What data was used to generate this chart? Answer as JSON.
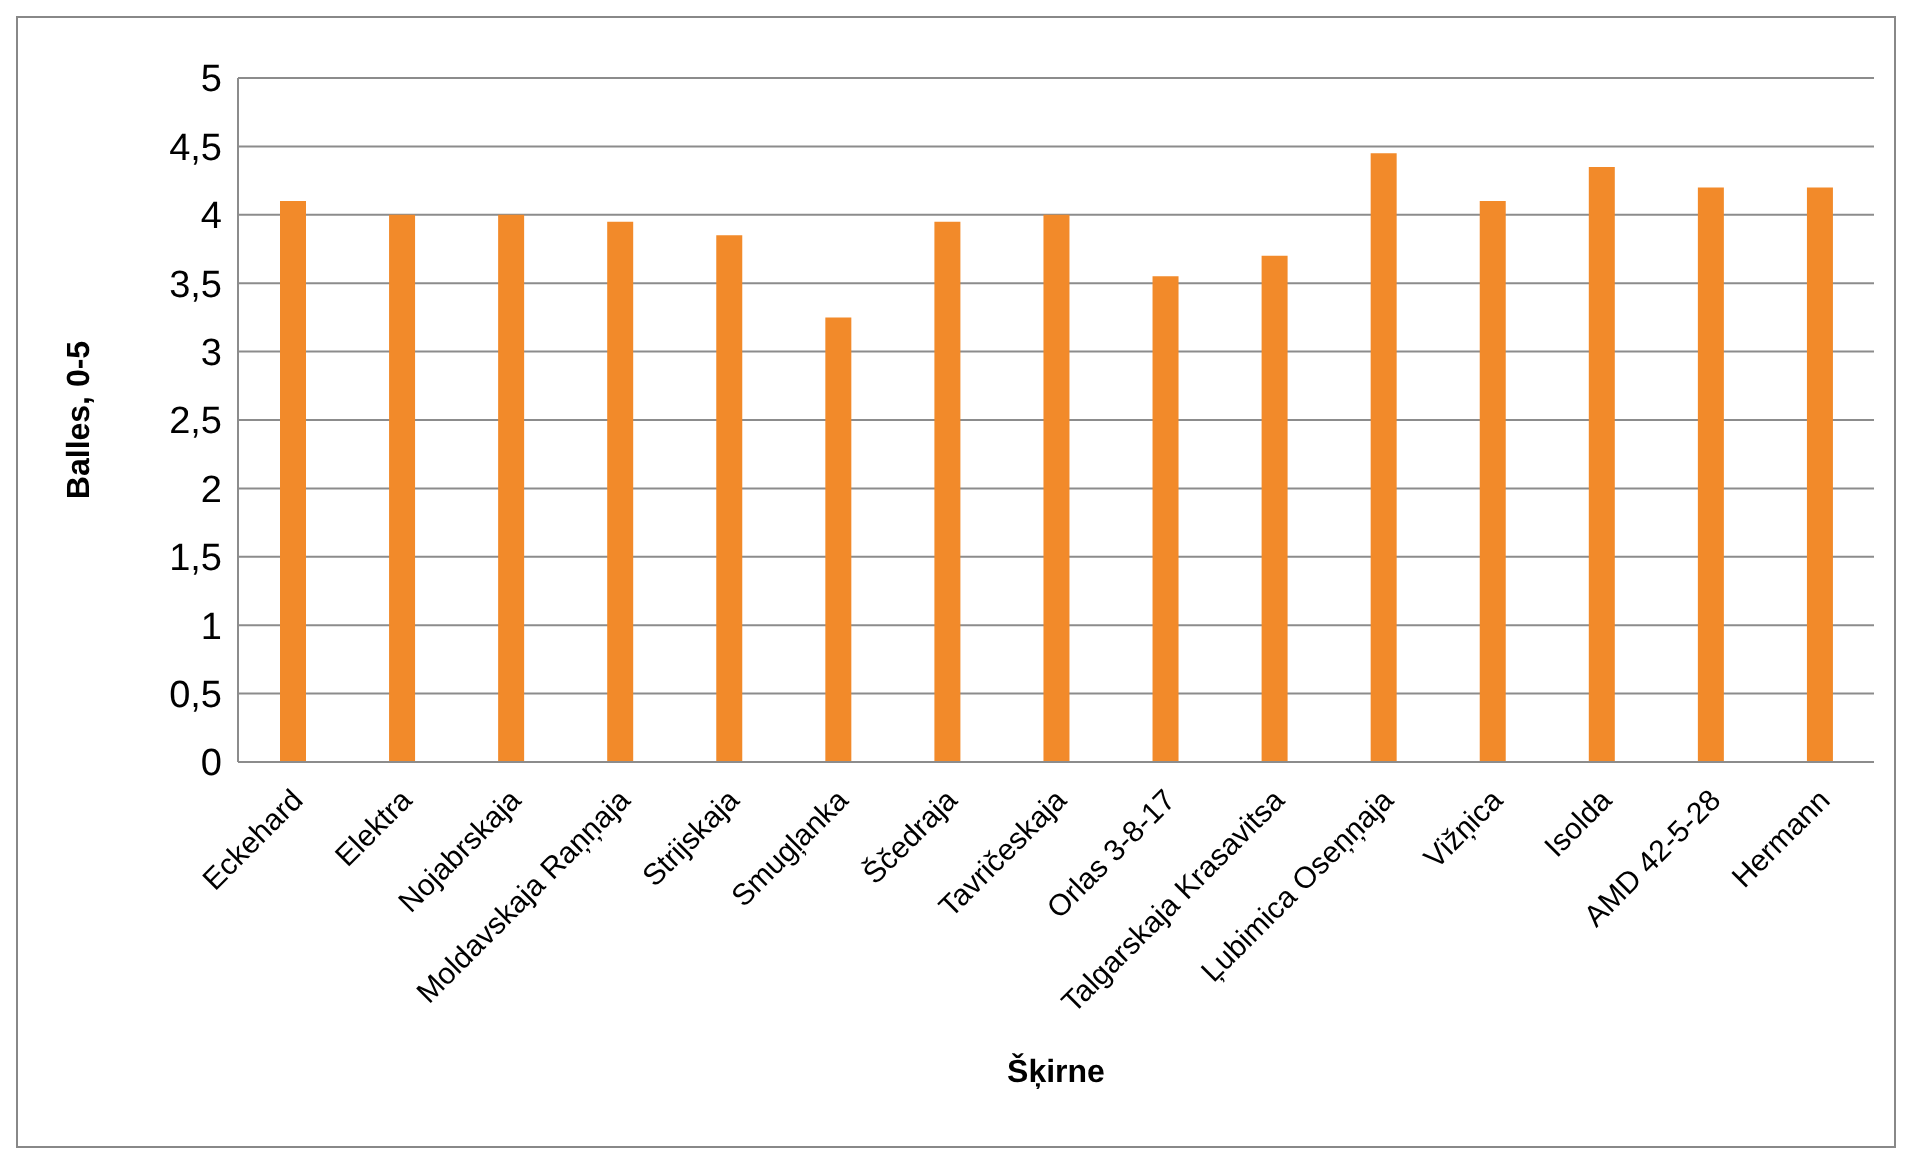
{
  "chart_data": {
    "type": "bar",
    "xlabel": "Šķirne",
    "ylabel": "Balles, 0-5",
    "categories": [
      "Eckehard",
      "Elektra",
      "Nojabrskaja",
      "Moldavskaja Raņņaja",
      "Strijskaja",
      "Smugļanka",
      "Ščedraja",
      "Tavričeskaja",
      "Orlas 3-8-17",
      "Talgarskaja Krasavitsa",
      "Ļubimica Oseņņaja",
      "Vižņica",
      "Isolda",
      "AMD 42-5-28",
      "Hermann"
    ],
    "values": [
      4.1,
      4.0,
      4.0,
      3.95,
      3.85,
      3.25,
      3.95,
      4.0,
      3.55,
      3.7,
      4.45,
      4.1,
      4.35,
      4.2,
      4.2
    ],
    "color": "#f28a2a",
    "ylim": [
      0,
      5
    ],
    "yticks": [
      0,
      {
        "value": 0.5,
        "label": "0,5"
      },
      1,
      {
        "value": 1.5,
        "label": "1,5"
      },
      2,
      {
        "value": 2.5,
        "label": "2,5"
      },
      3,
      {
        "value": 3.5,
        "label": "3,5"
      },
      4,
      {
        "value": 4.5,
        "label": "4,5"
      },
      5
    ],
    "grid": "y",
    "legend": false
  }
}
